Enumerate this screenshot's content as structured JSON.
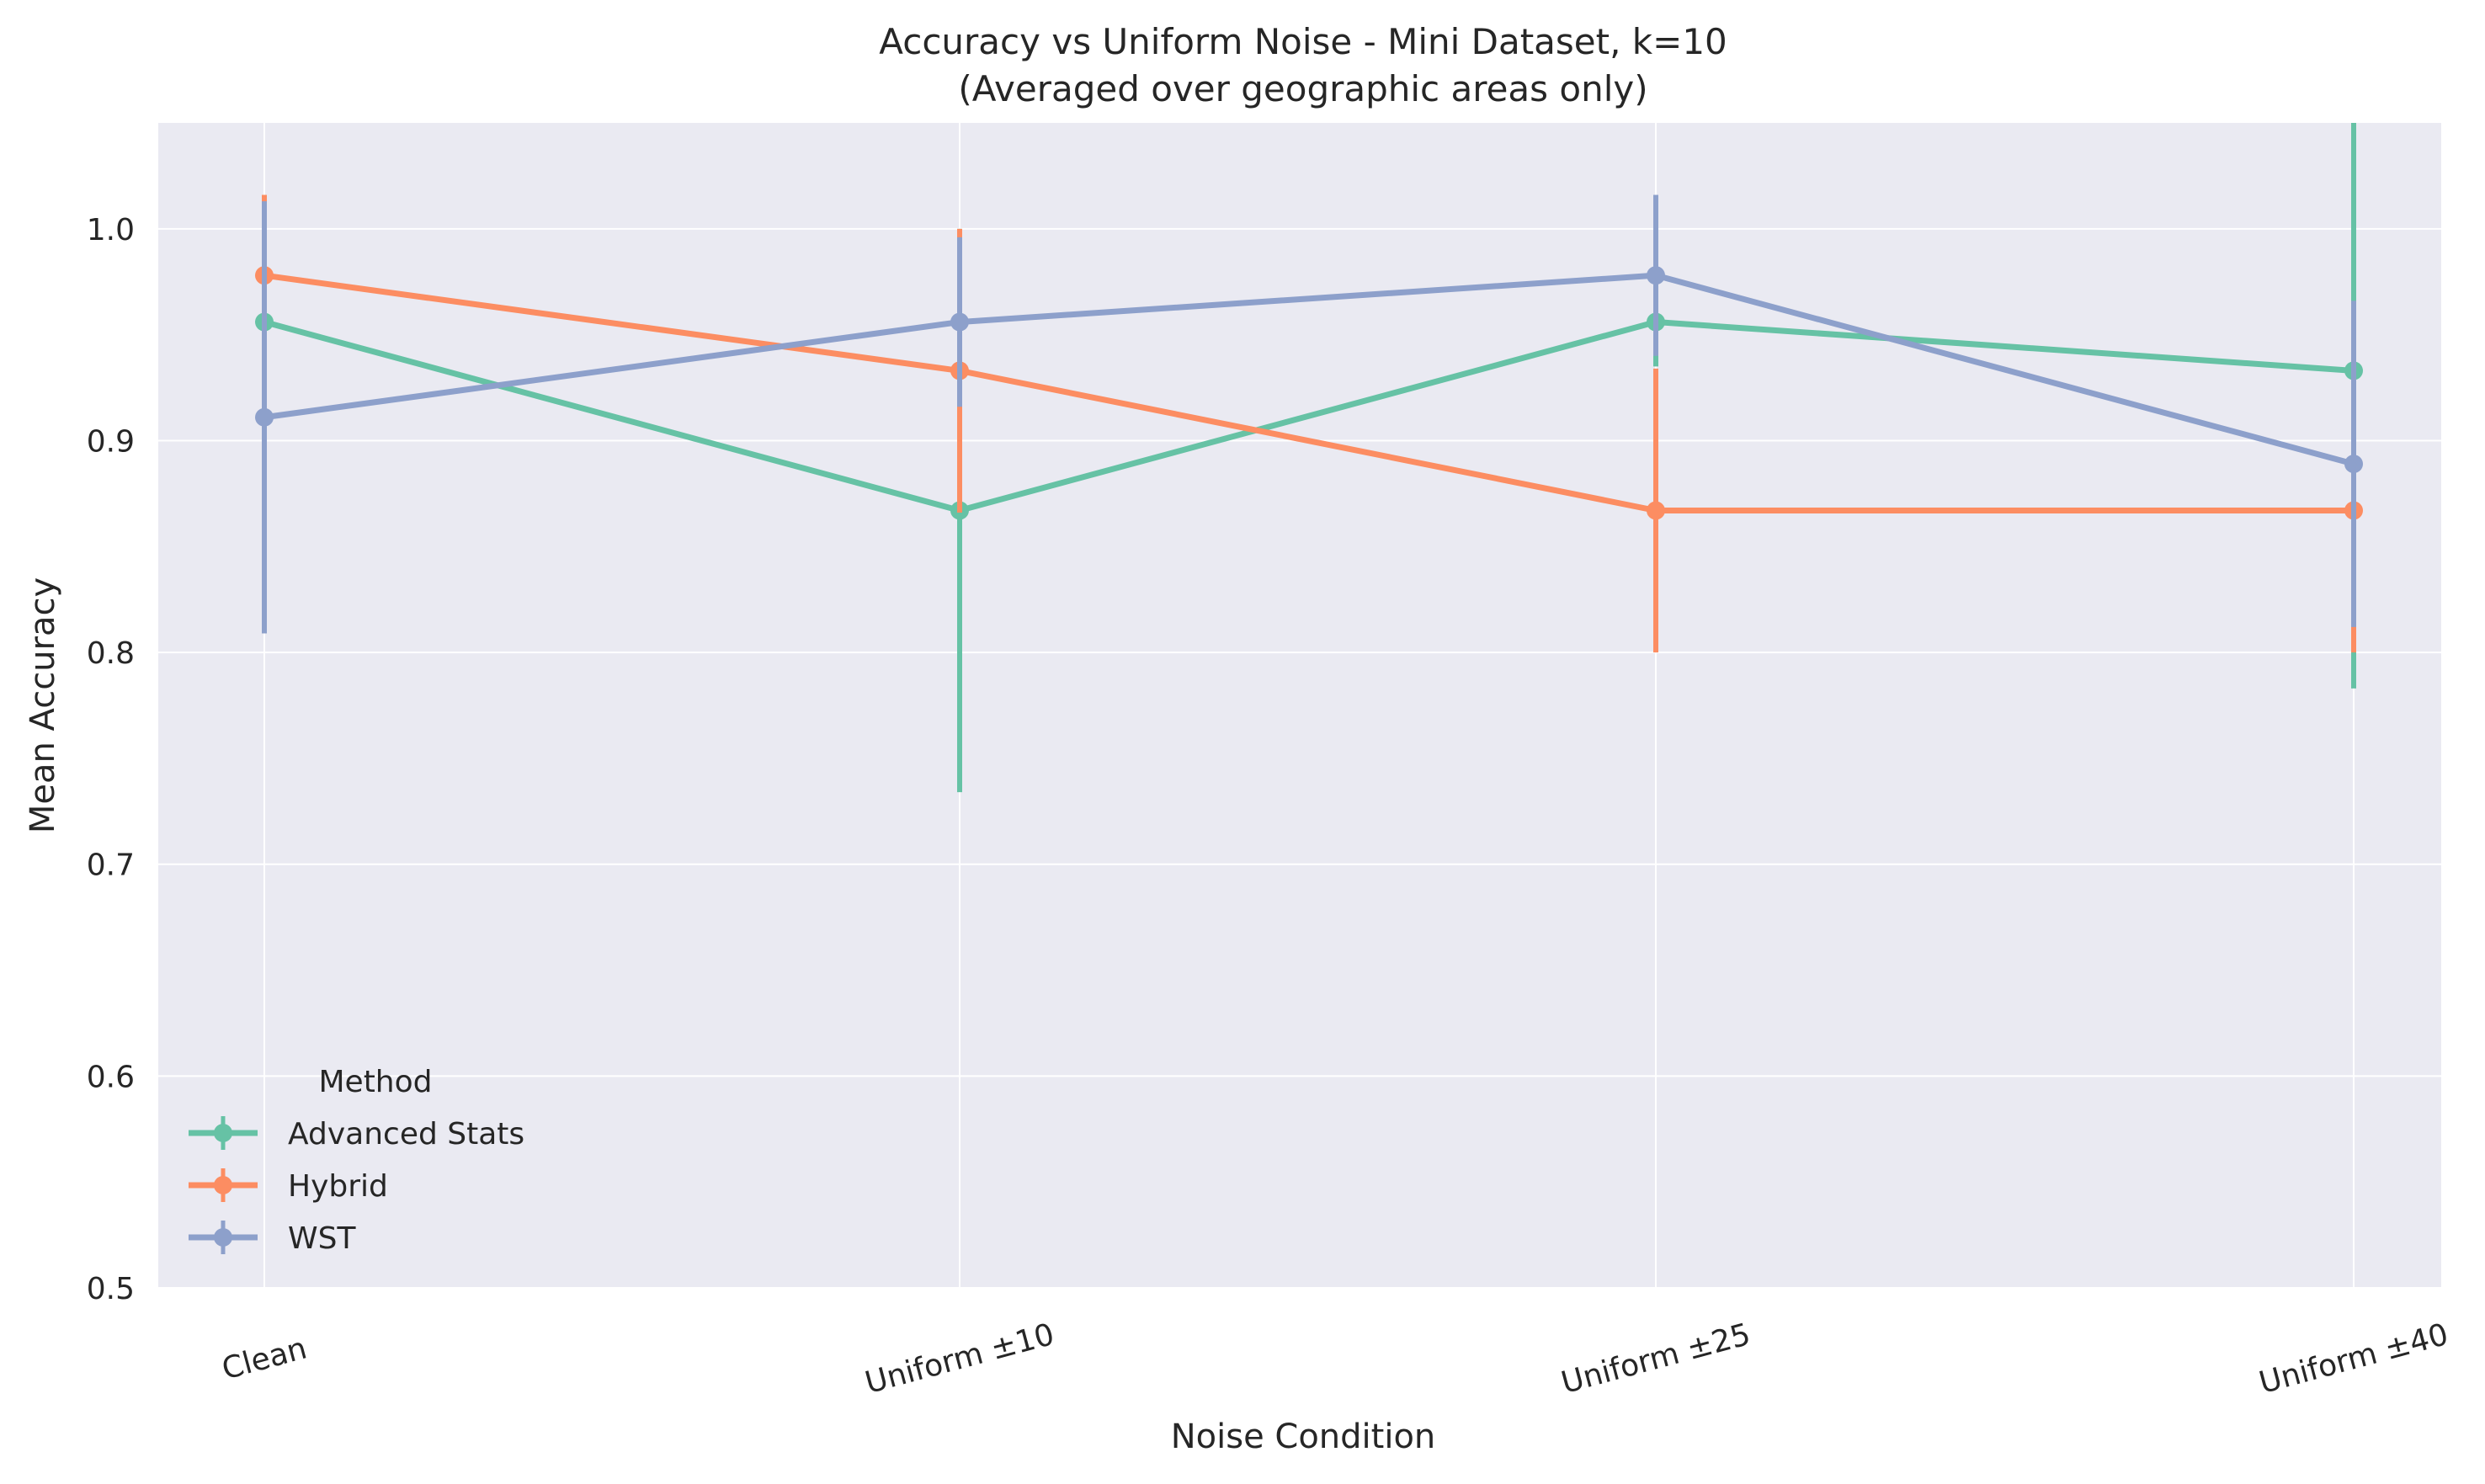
{
  "chart_data": {
    "type": "line",
    "title": "Accuracy vs Uniform Noise - Mini Dataset, k=10",
    "subtitle": "(Averaged over geographic areas only)",
    "xlabel": "Noise Condition",
    "ylabel": "Mean Accuracy",
    "categories": [
      "Clean",
      "Uniform ±10",
      "Uniform ±25",
      "Uniform ±40"
    ],
    "ylim": [
      0.5,
      1.05
    ],
    "yticks": [
      0.5,
      0.6,
      0.7,
      0.8,
      0.9,
      1.0
    ],
    "ytick_labels": [
      "0.5",
      "0.6",
      "0.7",
      "0.8",
      "0.9",
      "1.0"
    ],
    "grid": true,
    "legend_title": "Method",
    "legend_position": "lower-left",
    "error_bars": true,
    "series": [
      {
        "name": "Advanced Stats",
        "color": "#66c2a5",
        "values": [
          0.956,
          0.867,
          0.956,
          0.933
        ],
        "err": [
          0.058,
          0.133,
          0.021,
          0.15
        ]
      },
      {
        "name": "Hybrid",
        "color": "#fc8d62",
        "values": [
          0.978,
          0.933,
          0.867,
          0.867
        ],
        "err": [
          0.038,
          0.067,
          0.067,
          0.067
        ]
      },
      {
        "name": "WST",
        "color": "#8da0cb",
        "values": [
          0.911,
          0.956,
          0.978,
          0.889
        ],
        "err": [
          0.102,
          0.04,
          0.038,
          0.077
        ]
      }
    ]
  }
}
